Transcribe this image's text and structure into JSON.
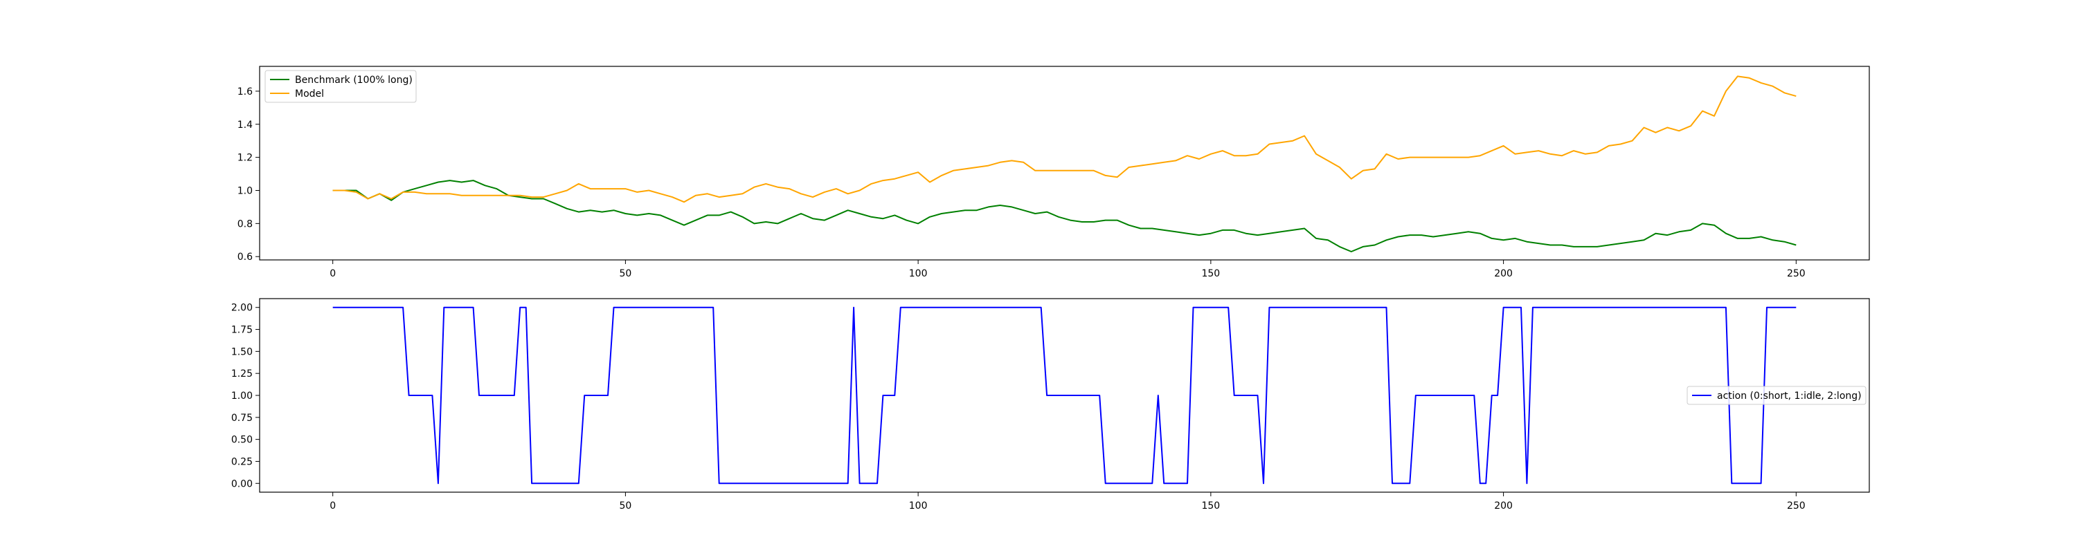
{
  "colors": {
    "benchmark": "#008000",
    "model": "#FFA500",
    "action": "#0000FF",
    "frame": "#000000",
    "legend_border": "#cccccc"
  },
  "chart_data": [
    {
      "type": "line",
      "title": "",
      "xlabel": "",
      "ylabel": "",
      "xlim": [
        -12.5,
        262.5
      ],
      "ylim": [
        0.58,
        1.75
      ],
      "xticks": [
        0,
        50,
        100,
        150,
        200,
        250
      ],
      "yticks": [
        0.6,
        0.8,
        1.0,
        1.2,
        1.4,
        1.6
      ],
      "xtick_labels": [
        "0",
        "50",
        "100",
        "150",
        "200",
        "250"
      ],
      "ytick_labels": [
        "0.6",
        "0.8",
        "1.0",
        "1.2",
        "1.4",
        "1.6"
      ],
      "grid": false,
      "legend_position": "upper-left",
      "series": [
        {
          "name": "Benchmark (100% long)",
          "color": "#008000",
          "x": [
            0,
            2,
            4,
            6,
            8,
            10,
            12,
            14,
            16,
            18,
            20,
            22,
            24,
            26,
            28,
            30,
            32,
            34,
            36,
            38,
            40,
            42,
            44,
            46,
            48,
            50,
            52,
            54,
            56,
            58,
            60,
            62,
            64,
            66,
            68,
            70,
            72,
            74,
            76,
            78,
            80,
            82,
            84,
            86,
            88,
            90,
            92,
            94,
            96,
            98,
            100,
            102,
            104,
            106,
            108,
            110,
            112,
            114,
            116,
            118,
            120,
            122,
            124,
            126,
            128,
            130,
            132,
            134,
            136,
            138,
            140,
            142,
            144,
            146,
            148,
            150,
            152,
            154,
            156,
            158,
            160,
            162,
            164,
            166,
            168,
            170,
            172,
            174,
            176,
            178,
            180,
            182,
            184,
            186,
            188,
            190,
            192,
            194,
            196,
            198,
            200,
            202,
            204,
            206,
            208,
            210,
            212,
            214,
            216,
            218,
            220,
            222,
            224,
            226,
            228,
            230,
            232,
            234,
            236,
            238,
            240,
            242,
            244,
            246,
            248,
            250
          ],
          "y": [
            1.0,
            1.0,
            1.0,
            0.95,
            0.98,
            0.94,
            0.99,
            1.01,
            1.03,
            1.05,
            1.06,
            1.05,
            1.06,
            1.03,
            1.01,
            0.97,
            0.96,
            0.95,
            0.95,
            0.92,
            0.89,
            0.87,
            0.88,
            0.87,
            0.88,
            0.86,
            0.85,
            0.86,
            0.85,
            0.82,
            0.79,
            0.82,
            0.85,
            0.85,
            0.87,
            0.84,
            0.8,
            0.81,
            0.8,
            0.83,
            0.86,
            0.83,
            0.82,
            0.85,
            0.88,
            0.86,
            0.84,
            0.83,
            0.85,
            0.82,
            0.8,
            0.84,
            0.86,
            0.87,
            0.88,
            0.88,
            0.9,
            0.91,
            0.9,
            0.88,
            0.86,
            0.87,
            0.84,
            0.82,
            0.81,
            0.81,
            0.82,
            0.82,
            0.79,
            0.77,
            0.77,
            0.76,
            0.75,
            0.74,
            0.73,
            0.74,
            0.76,
            0.76,
            0.74,
            0.73,
            0.74,
            0.75,
            0.76,
            0.77,
            0.71,
            0.7,
            0.66,
            0.63,
            0.66,
            0.67,
            0.7,
            0.72,
            0.73,
            0.73,
            0.72,
            0.73,
            0.74,
            0.75,
            0.74,
            0.71,
            0.7,
            0.71,
            0.69,
            0.68,
            0.67,
            0.67,
            0.66,
            0.66,
            0.66,
            0.67,
            0.68,
            0.69,
            0.7,
            0.74,
            0.73,
            0.75,
            0.76,
            0.8,
            0.79,
            0.74,
            0.71,
            0.71,
            0.72,
            0.7,
            0.69,
            0.67
          ]
        },
        {
          "name": "Model",
          "color": "#FFA500",
          "x": [
            0,
            2,
            4,
            6,
            8,
            10,
            12,
            14,
            16,
            18,
            20,
            22,
            24,
            26,
            28,
            30,
            32,
            34,
            36,
            38,
            40,
            42,
            44,
            46,
            48,
            50,
            52,
            54,
            56,
            58,
            60,
            62,
            64,
            66,
            68,
            70,
            72,
            74,
            76,
            78,
            80,
            82,
            84,
            86,
            88,
            90,
            92,
            94,
            96,
            98,
            100,
            102,
            104,
            106,
            108,
            110,
            112,
            114,
            116,
            118,
            120,
            122,
            124,
            126,
            128,
            130,
            132,
            134,
            136,
            138,
            140,
            142,
            144,
            146,
            148,
            150,
            152,
            154,
            156,
            158,
            160,
            162,
            164,
            166,
            168,
            170,
            172,
            174,
            176,
            178,
            180,
            182,
            184,
            186,
            188,
            190,
            192,
            194,
            196,
            198,
            200,
            202,
            204,
            206,
            208,
            210,
            212,
            214,
            216,
            218,
            220,
            222,
            224,
            226,
            228,
            230,
            232,
            234,
            236,
            238,
            240,
            242,
            244,
            246,
            248,
            250
          ],
          "y": [
            1.0,
            1.0,
            0.99,
            0.95,
            0.98,
            0.95,
            0.99,
            0.99,
            0.98,
            0.98,
            0.98,
            0.97,
            0.97,
            0.97,
            0.97,
            0.97,
            0.97,
            0.96,
            0.96,
            0.98,
            1.0,
            1.04,
            1.01,
            1.01,
            1.01,
            1.01,
            0.99,
            1.0,
            0.98,
            0.96,
            0.93,
            0.97,
            0.98,
            0.96,
            0.97,
            0.98,
            1.02,
            1.04,
            1.02,
            1.01,
            0.98,
            0.96,
            0.99,
            1.01,
            0.98,
            1.0,
            1.04,
            1.06,
            1.07,
            1.09,
            1.11,
            1.05,
            1.09,
            1.12,
            1.13,
            1.14,
            1.15,
            1.17,
            1.18,
            1.17,
            1.12,
            1.12,
            1.12,
            1.12,
            1.12,
            1.12,
            1.09,
            1.08,
            1.14,
            1.15,
            1.16,
            1.17,
            1.18,
            1.21,
            1.19,
            1.22,
            1.24,
            1.21,
            1.21,
            1.22,
            1.28,
            1.29,
            1.3,
            1.33,
            1.22,
            1.18,
            1.14,
            1.07,
            1.12,
            1.13,
            1.22,
            1.19,
            1.2,
            1.2,
            1.2,
            1.2,
            1.2,
            1.2,
            1.21,
            1.24,
            1.27,
            1.22,
            1.23,
            1.24,
            1.22,
            1.21,
            1.24,
            1.22,
            1.23,
            1.27,
            1.28,
            1.3,
            1.38,
            1.35,
            1.38,
            1.36,
            1.39,
            1.48,
            1.45,
            1.6,
            1.69,
            1.68,
            1.65,
            1.63,
            1.59,
            1.57
          ]
        }
      ]
    },
    {
      "type": "line",
      "title": "",
      "xlabel": "",
      "ylabel": "",
      "xlim": [
        -12.5,
        262.5
      ],
      "ylim": [
        -0.1,
        2.1
      ],
      "xticks": [
        0,
        50,
        100,
        150,
        200,
        250
      ],
      "yticks": [
        0.0,
        0.25,
        0.5,
        0.75,
        1.0,
        1.25,
        1.5,
        1.75,
        2.0
      ],
      "xtick_labels": [
        "0",
        "50",
        "100",
        "150",
        "200",
        "250"
      ],
      "ytick_labels": [
        "0.00",
        "0.25",
        "0.50",
        "0.75",
        "1.00",
        "1.25",
        "1.50",
        "1.75",
        "2.00"
      ],
      "grid": false,
      "legend_position": "center-right",
      "series": [
        {
          "name": "action (0:short, 1:idle, 2:long)",
          "color": "#0000FF",
          "x": [
            0,
            12,
            13,
            17,
            18,
            19,
            24,
            25,
            31,
            32,
            33,
            34,
            42,
            43,
            47,
            48,
            65,
            66,
            88,
            89,
            90,
            93,
            94,
            96,
            97,
            121,
            122,
            131,
            132,
            140,
            141,
            142,
            146,
            147,
            153,
            154,
            158,
            159,
            160,
            180,
            181,
            184,
            185,
            195,
            196,
            197,
            198,
            199,
            200,
            203,
            204,
            205,
            238,
            239,
            244,
            245,
            250
          ],
          "y": [
            2,
            2,
            1,
            1,
            0,
            2,
            2,
            1,
            1,
            2,
            2,
            0,
            0,
            1,
            1,
            2,
            2,
            0,
            0,
            2,
            0,
            0,
            1,
            1,
            2,
            2,
            1,
            1,
            0,
            0,
            1,
            0,
            0,
            2,
            2,
            1,
            1,
            0,
            2,
            2,
            0,
            0,
            1,
            1,
            0,
            0,
            1,
            1,
            2,
            2,
            0,
            2,
            2,
            0,
            0,
            2,
            2
          ]
        }
      ]
    }
  ]
}
